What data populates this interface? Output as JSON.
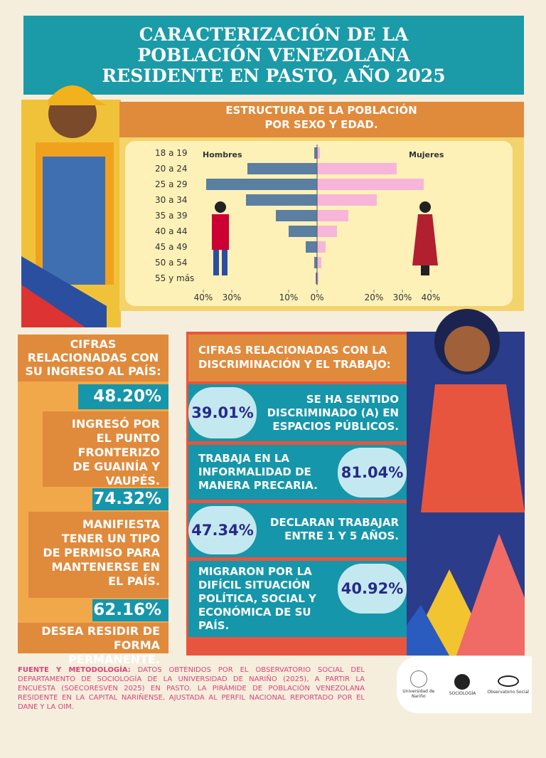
{
  "header": {
    "title_lines": [
      "CARACTERIZACIÓN DE LA",
      "POBLACIÓN VENEZOLANA",
      "RESIDENTE EN PASTO, AÑO 2025"
    ]
  },
  "chart_data": {
    "type": "pyramid",
    "title_lines": [
      "ESTRUCTURA DE LA POBLACIÓN",
      "POR SEXO Y EDAD."
    ],
    "categories": [
      "18 a 19",
      "20 a 24",
      "25 a 29",
      "30 a 34",
      "35 a 39",
      "40 a 44",
      "45 a 49",
      "50 a 54",
      "55 y más"
    ],
    "series": [
      {
        "name": "Hombres",
        "color": "#5b7fa0",
        "side": "left",
        "values": [
          1,
          24.5,
          39,
          25,
          14.5,
          10,
          4,
          1,
          0.5
        ]
      },
      {
        "name": "Mujeres",
        "color": "#f7b6d9",
        "side": "right",
        "values": [
          1,
          28,
          37.5,
          21,
          11,
          7,
          3,
          1.5,
          0.5
        ]
      }
    ],
    "xlim": [
      -40,
      40
    ],
    "xticks": [
      {
        "value": -40,
        "label": "40%"
      },
      {
        "value": -30,
        "label": "30%"
      },
      {
        "value": -10,
        "label": "10%"
      },
      {
        "value": 0,
        "label": "0%"
      },
      {
        "value": 20,
        "label": "20%"
      },
      {
        "value": 30,
        "label": "30%"
      },
      {
        "value": 40,
        "label": "40%"
      }
    ]
  },
  "ingreso": {
    "title": "CIFRAS RELACIONADAS CON SU INGRESO AL PAÍS:",
    "items": [
      {
        "value": "48.20%",
        "text": "INGRESÓ POR EL PUNTO FRONTERIZO DE GUAINÍA Y VAUPÉS."
      },
      {
        "value": "74.32%",
        "text": "MANIFIESTA TENER UN TIPO DE PERMISO PARA MANTENERSE EN EL PAÍS."
      },
      {
        "value": "62.16%",
        "text": "DESEA RESIDIR DE FORMA PERMANENTE."
      }
    ]
  },
  "discriminacion": {
    "title": "CIFRAS RELACIONADAS CON LA DISCRIMINACIÓN Y EL TRABAJO:",
    "items": [
      {
        "value": "39.01%",
        "text": "SE HA SENTIDO DISCRIMINADO (A) EN ESPACIOS PÚBLICOS."
      },
      {
        "value": "81.04%",
        "text": "TRABAJA EN LA INFORMALIDAD DE MANERA PRECARIA."
      },
      {
        "value": "47.34%",
        "text": "DECLARAN TRABAJAR ENTRE 1 Y 5 AÑOS."
      },
      {
        "value": "40.92%",
        "text": "MIGRARON POR LA DIFÍCIL SITUACIÓN POLÍTICA, SOCIAL Y ECONÓMICA DE SU PAÍS."
      }
    ]
  },
  "footer": {
    "label": "FUENTE Y METODOLOGÍA:",
    "text": "DATOS OBTENIDOS POR EL OBSERVATORIO SOCIAL DEL DEPARTAMENTO DE SOCIOLOGÍA DE LA UNIVERSIDAD DE NARIÑO (2025), A PARTIR LA ENCUESTA (SOECORESVEN 2025) EN PASTO. LA PIRÁMIDE DE POBLACIÓN VENEZOLANA RESIDENTE EN LA CAPITAL NARIÑENSE, AJUSTADA AL PERFIL NACIONAL REPORTADO POR EL DANE Y LA OIM.",
    "logos": [
      "Universidad de Nariño",
      "SOCIOLOGÍA",
      "Observatorio Social"
    ]
  }
}
